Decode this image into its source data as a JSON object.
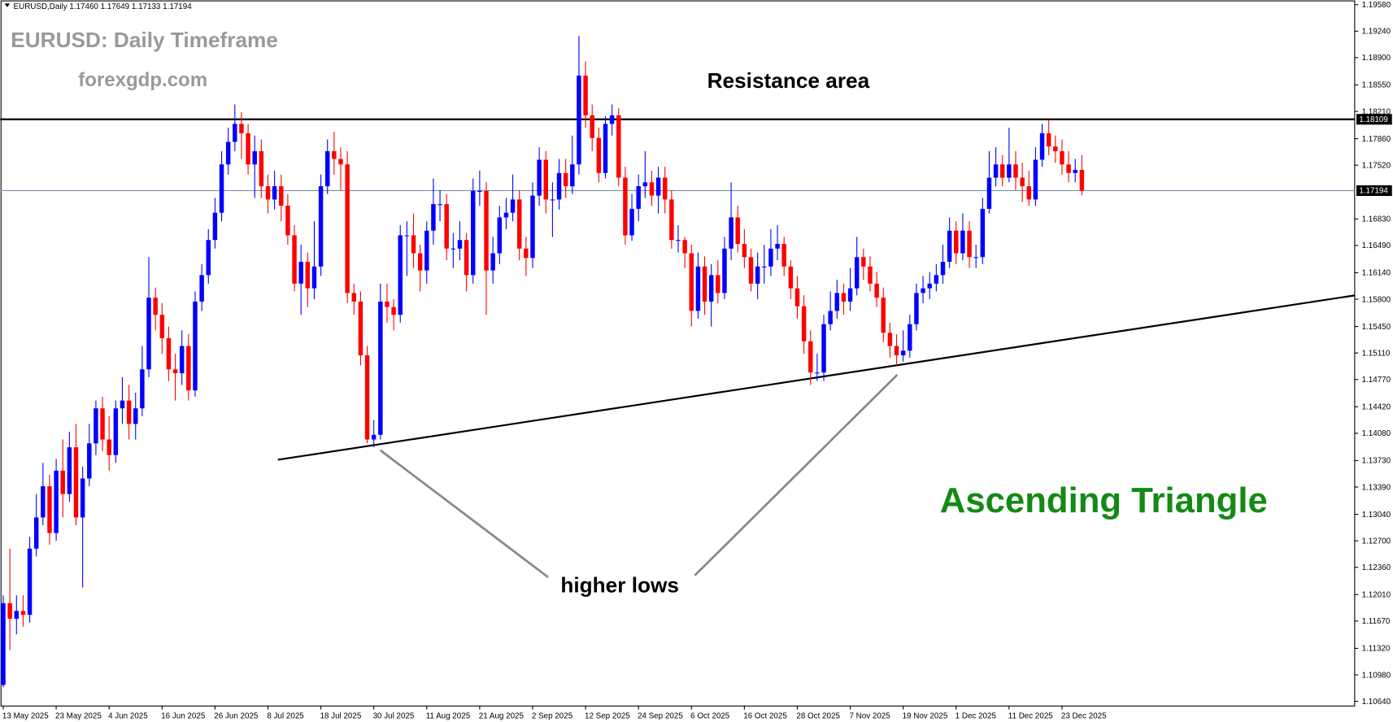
{
  "chart_data": {
    "type": "candlestick",
    "info_bar": "EURUSD,Daily  1.17460 1.17649 1.17133 1.17194",
    "title": "EURUSD: Daily Timeframe",
    "subtitle": "forexgdp.com",
    "annotations": [
      "Resistance area",
      "higher lows",
      "Ascending Triangle"
    ],
    "bull_color": "#0000ff",
    "bear_color": "#ff0000",
    "ylim": [
      1.1058,
      1.1964
    ],
    "yticks": [
      {
        "value": 1.1958,
        "label": "1.19580"
      },
      {
        "value": 1.1924,
        "label": "1.19240"
      },
      {
        "value": 1.189,
        "label": "1.18900"
      },
      {
        "value": 1.1855,
        "label": "1.18550"
      },
      {
        "value": 1.1821,
        "label": "1.18210"
      },
      {
        "value": 1.1786,
        "label": "1.17860"
      },
      {
        "value": 1.1752,
        "label": "1.17520"
      },
      {
        "value": 1.1683,
        "label": "1.16830"
      },
      {
        "value": 1.1649,
        "label": "1.16490"
      },
      {
        "value": 1.1614,
        "label": "1.16140"
      },
      {
        "value": 1.158,
        "label": "1.15800"
      },
      {
        "value": 1.1545,
        "label": "1.15450"
      },
      {
        "value": 1.1511,
        "label": "1.15110"
      },
      {
        "value": 1.1477,
        "label": "1.14770"
      },
      {
        "value": 1.1442,
        "label": "1.14420"
      },
      {
        "value": 1.1408,
        "label": "1.14080"
      },
      {
        "value": 1.1373,
        "label": "1.13730"
      },
      {
        "value": 1.1339,
        "label": "1.13390"
      },
      {
        "value": 1.1304,
        "label": "1.13040"
      },
      {
        "value": 1.127,
        "label": "1.12700"
      },
      {
        "value": 1.1236,
        "label": "1.12360"
      },
      {
        "value": 1.1201,
        "label": "1.12010"
      },
      {
        "value": 1.1167,
        "label": "1.11670"
      },
      {
        "value": 1.1132,
        "label": "1.11320"
      },
      {
        "value": 1.1098,
        "label": "1.10980"
      },
      {
        "value": 1.1064,
        "label": "1.10640"
      }
    ],
    "hlines": [
      1.18109,
      1.17194
    ],
    "trendline": {
      "x": [
        41.5,
        204.3
      ],
      "y": [
        1.1374,
        1.1585
      ]
    },
    "categories": [
      "13 May 2025",
      null,
      null,
      null,
      null,
      null,
      null,
      null,
      "23 May 2025",
      null,
      null,
      null,
      null,
      null,
      null,
      null,
      "4 Jun 2025",
      null,
      null,
      null,
      null,
      null,
      null,
      null,
      "16 Jun 2025",
      null,
      null,
      null,
      null,
      null,
      null,
      null,
      "26 Jun 2025",
      null,
      null,
      null,
      null,
      null,
      null,
      null,
      "8 Jul 2025",
      null,
      null,
      null,
      null,
      null,
      null,
      null,
      "18 Jul 2025",
      null,
      null,
      null,
      null,
      null,
      null,
      null,
      "30 Jul 2025",
      null,
      null,
      null,
      null,
      null,
      null,
      null,
      "11 Aug 2025",
      null,
      null,
      null,
      null,
      null,
      null,
      null,
      "21 Aug 2025",
      null,
      null,
      null,
      null,
      null,
      null,
      null,
      "2 Sep 2025",
      null,
      null,
      null,
      null,
      null,
      null,
      null,
      "12 Sep 2025",
      null,
      null,
      null,
      null,
      null,
      null,
      null,
      "24 Sep 2025",
      null,
      null,
      null,
      null,
      null,
      null,
      null,
      "6 Oct 2025",
      null,
      null,
      null,
      null,
      null,
      null,
      null,
      "16 Oct 2025",
      null,
      null,
      null,
      null,
      null,
      null,
      null,
      "28 Oct 2025",
      null,
      null,
      null,
      null,
      null,
      null,
      null,
      "7 Nov 2025",
      null,
      null,
      null,
      null,
      null,
      null,
      null,
      "19 Nov 2025",
      null,
      null,
      null,
      null,
      null,
      null,
      null,
      "1 Dec 2025",
      null,
      null,
      null,
      null,
      null,
      null,
      null,
      "11 Dec 2025",
      null,
      null,
      null,
      null,
      null,
      null,
      null,
      "23 Dec 2025",
      null,
      null,
      null
    ],
    "candles": [
      [
        1.1085,
        1.12,
        1.1082,
        1.119
      ],
      [
        1.119,
        1.126,
        1.113,
        1.117
      ],
      [
        1.117,
        1.12,
        1.115,
        1.118
      ],
      [
        1.118,
        1.12,
        1.116,
        1.1175
      ],
      [
        1.1175,
        1.1275,
        1.1165,
        1.126
      ],
      [
        1.126,
        1.133,
        1.125,
        1.13
      ],
      [
        1.13,
        1.137,
        1.129,
        1.134
      ],
      [
        1.134,
        1.1355,
        1.1265,
        1.128
      ],
      [
        1.128,
        1.1375,
        1.127,
        1.136
      ],
      [
        1.136,
        1.14,
        1.13,
        1.133
      ],
      [
        1.133,
        1.141,
        1.132,
        1.139
      ],
      [
        1.139,
        1.142,
        1.129,
        1.13
      ],
      [
        1.13,
        1.1365,
        1.121,
        1.135
      ],
      [
        1.135,
        1.142,
        1.134,
        1.1395
      ],
      [
        1.1395,
        1.145,
        1.138,
        1.144
      ],
      [
        1.144,
        1.1455,
        1.1385,
        1.14
      ],
      [
        1.14,
        1.143,
        1.136,
        1.138
      ],
      [
        1.138,
        1.145,
        1.137,
        1.144
      ],
      [
        1.144,
        1.148,
        1.142,
        1.145
      ],
      [
        1.145,
        1.147,
        1.14,
        1.142
      ],
      [
        1.142,
        1.146,
        1.14,
        1.144
      ],
      [
        1.144,
        1.152,
        1.143,
        1.149
      ],
      [
        1.149,
        1.1634,
        1.148,
        1.1582
      ],
      [
        1.1582,
        1.1595,
        1.154,
        1.156
      ],
      [
        1.156,
        1.1575,
        1.151,
        1.153
      ],
      [
        1.153,
        1.1545,
        1.1475,
        1.149
      ],
      [
        1.149,
        1.151,
        1.145,
        1.1485
      ],
      [
        1.1485,
        1.154,
        1.147,
        1.152
      ],
      [
        1.152,
        1.1535,
        1.145,
        1.1463
      ],
      [
        1.1463,
        1.159,
        1.1455,
        1.1577
      ],
      [
        1.1577,
        1.1625,
        1.1565,
        1.1611
      ],
      [
        1.1611,
        1.167,
        1.16,
        1.1656
      ],
      [
        1.1656,
        1.171,
        1.1645,
        1.1691
      ],
      [
        1.1691,
        1.177,
        1.168,
        1.1753
      ],
      [
        1.1753,
        1.18,
        1.174,
        1.1782
      ],
      [
        1.1782,
        1.183,
        1.177,
        1.1805
      ],
      [
        1.1805,
        1.182,
        1.176,
        1.1793
      ],
      [
        1.1793,
        1.1805,
        1.174,
        1.1753
      ],
      [
        1.1753,
        1.179,
        1.171,
        1.177
      ],
      [
        1.177,
        1.1785,
        1.171,
        1.1725
      ],
      [
        1.1725,
        1.174,
        1.169,
        1.1708
      ],
      [
        1.1708,
        1.1745,
        1.1695,
        1.1725
      ],
      [
        1.1725,
        1.174,
        1.168,
        1.17
      ],
      [
        1.17,
        1.1715,
        1.165,
        1.1662
      ],
      [
        1.1662,
        1.1675,
        1.159,
        1.16
      ],
      [
        1.16,
        1.165,
        1.156,
        1.1628
      ],
      [
        1.1628,
        1.164,
        1.157,
        1.1594
      ],
      [
        1.1594,
        1.168,
        1.158,
        1.1622
      ],
      [
        1.1622,
        1.174,
        1.161,
        1.1725
      ],
      [
        1.1725,
        1.1785,
        1.1715,
        1.177
      ],
      [
        1.177,
        1.1795,
        1.174,
        1.176
      ],
      [
        1.176,
        1.1775,
        1.172,
        1.1753
      ],
      [
        1.1753,
        1.177,
        1.1575,
        1.1588
      ],
      [
        1.1588,
        1.16,
        1.156,
        1.1577
      ],
      [
        1.1577,
        1.159,
        1.1495,
        1.1508
      ],
      [
        1.1508,
        1.152,
        1.1395,
        1.14
      ],
      [
        1.14,
        1.1425,
        1.139,
        1.1406
      ],
      [
        1.1406,
        1.16,
        1.14,
        1.1577
      ],
      [
        1.1577,
        1.16,
        1.155,
        1.157
      ],
      [
        1.157,
        1.158,
        1.154,
        1.156
      ],
      [
        1.156,
        1.1675,
        1.155,
        1.1662
      ],
      [
        1.1662,
        1.168,
        1.161,
        1.1662
      ],
      [
        1.1662,
        1.169,
        1.162,
        1.1639
      ],
      [
        1.1639,
        1.165,
        1.159,
        1.1617
      ],
      [
        1.1617,
        1.168,
        1.16,
        1.1668
      ],
      [
        1.1668,
        1.1735,
        1.165,
        1.1702
      ],
      [
        1.1702,
        1.172,
        1.168,
        1.1702
      ],
      [
        1.1702,
        1.1715,
        1.163,
        1.1645
      ],
      [
        1.1645,
        1.1665,
        1.162,
        1.1645
      ],
      [
        1.1645,
        1.168,
        1.163,
        1.1656
      ],
      [
        1.1656,
        1.1665,
        1.159,
        1.1611
      ],
      [
        1.1611,
        1.1735,
        1.16,
        1.1719
      ],
      [
        1.1719,
        1.1745,
        1.17,
        1.1719
      ],
      [
        1.1719,
        1.173,
        1.156,
        1.1617
      ],
      [
        1.1617,
        1.166,
        1.16,
        1.1639
      ],
      [
        1.1639,
        1.17,
        1.1625,
        1.1685
      ],
      [
        1.1685,
        1.171,
        1.167,
        1.1691
      ],
      [
        1.1691,
        1.174,
        1.168,
        1.1708
      ],
      [
        1.1708,
        1.172,
        1.163,
        1.1645
      ],
      [
        1.1645,
        1.166,
        1.161,
        1.1633
      ],
      [
        1.1633,
        1.173,
        1.162,
        1.1713
      ],
      [
        1.1713,
        1.1775,
        1.17,
        1.1759
      ],
      [
        1.1759,
        1.177,
        1.169,
        1.1708
      ],
      [
        1.1708,
        1.173,
        1.166,
        1.1708
      ],
      [
        1.1708,
        1.176,
        1.1695,
        1.1742
      ],
      [
        1.1742,
        1.176,
        1.171,
        1.1725
      ],
      [
        1.1725,
        1.179,
        1.1715,
        1.1753
      ],
      [
        1.1753,
        1.1918,
        1.174,
        1.1867
      ],
      [
        1.1867,
        1.1885,
        1.18,
        1.1816
      ],
      [
        1.1816,
        1.183,
        1.177,
        1.1787
      ],
      [
        1.1787,
        1.18,
        1.173,
        1.1742
      ],
      [
        1.1742,
        1.1815,
        1.1735,
        1.1805
      ],
      [
        1.1805,
        1.183,
        1.179,
        1.1816
      ],
      [
        1.1816,
        1.1825,
        1.1725,
        1.1736
      ],
      [
        1.1736,
        1.175,
        1.165,
        1.1662
      ],
      [
        1.1662,
        1.1715,
        1.1655,
        1.1696
      ],
      [
        1.1696,
        1.174,
        1.168,
        1.1725
      ],
      [
        1.1725,
        1.177,
        1.171,
        1.173
      ],
      [
        1.173,
        1.1745,
        1.17,
        1.1713
      ],
      [
        1.1713,
        1.175,
        1.169,
        1.1736
      ],
      [
        1.1736,
        1.175,
        1.169,
        1.1708
      ],
      [
        1.1708,
        1.172,
        1.1645,
        1.1656
      ],
      [
        1.1656,
        1.1675,
        1.164,
        1.1656
      ],
      [
        1.1656,
        1.166,
        1.162,
        1.1639
      ],
      [
        1.1639,
        1.165,
        1.1545,
        1.1565
      ],
      [
        1.1565,
        1.164,
        1.1555,
        1.1622
      ],
      [
        1.1622,
        1.1635,
        1.156,
        1.1577
      ],
      [
        1.1577,
        1.1625,
        1.1545,
        1.1611
      ],
      [
        1.1611,
        1.163,
        1.1575,
        1.1588
      ],
      [
        1.1588,
        1.166,
        1.158,
        1.1645
      ],
      [
        1.1645,
        1.173,
        1.163,
        1.1685
      ],
      [
        1.1685,
        1.17,
        1.164,
        1.1651
      ],
      [
        1.1651,
        1.167,
        1.162,
        1.1634
      ],
      [
        1.1634,
        1.1645,
        1.159,
        1.16
      ],
      [
        1.16,
        1.164,
        1.158,
        1.1622
      ],
      [
        1.1622,
        1.165,
        1.16,
        1.1622
      ],
      [
        1.1622,
        1.167,
        1.161,
        1.1645
      ],
      [
        1.1645,
        1.1675,
        1.163,
        1.1651
      ],
      [
        1.1651,
        1.166,
        1.161,
        1.1622
      ],
      [
        1.1622,
        1.163,
        1.158,
        1.1594
      ],
      [
        1.1594,
        1.161,
        1.1555,
        1.1571
      ],
      [
        1.1571,
        1.1585,
        1.151,
        1.1526
      ],
      [
        1.1526,
        1.154,
        1.147,
        1.1486
      ],
      [
        1.1486,
        1.151,
        1.1475,
        1.1486
      ],
      [
        1.1486,
        1.156,
        1.1475,
        1.1548
      ],
      [
        1.1548,
        1.159,
        1.154,
        1.1565
      ],
      [
        1.1565,
        1.1605,
        1.1555,
        1.1588
      ],
      [
        1.1588,
        1.16,
        1.156,
        1.1577
      ],
      [
        1.1577,
        1.162,
        1.1565,
        1.1594
      ],
      [
        1.1594,
        1.166,
        1.1585,
        1.1634
      ],
      [
        1.1634,
        1.1645,
        1.1605,
        1.1622
      ],
      [
        1.1622,
        1.1635,
        1.159,
        1.16
      ],
      [
        1.16,
        1.1615,
        1.157,
        1.1582
      ],
      [
        1.1582,
        1.1595,
        1.1525,
        1.1537
      ],
      [
        1.1537,
        1.155,
        1.1505,
        1.152
      ],
      [
        1.152,
        1.1535,
        1.1495,
        1.1508
      ],
      [
        1.1508,
        1.154,
        1.15,
        1.1514
      ],
      [
        1.1514,
        1.156,
        1.1505,
        1.1548
      ],
      [
        1.1548,
        1.16,
        1.154,
        1.1588
      ],
      [
        1.1588,
        1.161,
        1.1575,
        1.1594
      ],
      [
        1.1594,
        1.1615,
        1.158,
        1.16
      ],
      [
        1.16,
        1.1625,
        1.159,
        1.1611
      ],
      [
        1.1611,
        1.165,
        1.16,
        1.1628
      ],
      [
        1.1628,
        1.1685,
        1.162,
        1.1668
      ],
      [
        1.1668,
        1.168,
        1.1625,
        1.1639
      ],
      [
        1.1639,
        1.169,
        1.163,
        1.1668
      ],
      [
        1.1668,
        1.168,
        1.162,
        1.1634
      ],
      [
        1.1634,
        1.165,
        1.162,
        1.1634
      ],
      [
        1.1634,
        1.171,
        1.1625,
        1.1696
      ],
      [
        1.1696,
        1.177,
        1.169,
        1.1736
      ],
      [
        1.1736,
        1.1775,
        1.1725,
        1.1753
      ],
      [
        1.1753,
        1.1765,
        1.1725,
        1.1736
      ],
      [
        1.1736,
        1.18,
        1.173,
        1.1753
      ],
      [
        1.1753,
        1.177,
        1.172,
        1.1736
      ],
      [
        1.1736,
        1.1755,
        1.1705,
        1.1725
      ],
      [
        1.1725,
        1.1745,
        1.17,
        1.1708
      ],
      [
        1.1708,
        1.1775,
        1.17,
        1.1759
      ],
      [
        1.1759,
        1.1805,
        1.175,
        1.1793
      ],
      [
        1.1793,
        1.181,
        1.1765,
        1.1776
      ],
      [
        1.1776,
        1.179,
        1.1755,
        1.177
      ],
      [
        1.177,
        1.1785,
        1.174,
        1.1753
      ],
      [
        1.1753,
        1.177,
        1.173,
        1.1742
      ],
      [
        1.1742,
        1.176,
        1.173,
        1.1746
      ],
      [
        1.1746,
        1.17649,
        1.17133,
        1.17194
      ]
    ]
  }
}
